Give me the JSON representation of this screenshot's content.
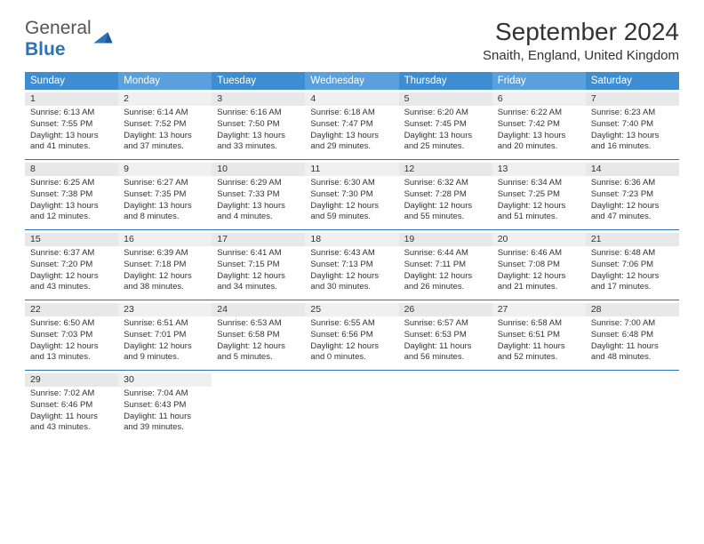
{
  "logo": {
    "text1": "General",
    "text2": "Blue"
  },
  "title": "September 2024",
  "location": "Snaith, England, United Kingdom",
  "colors": {
    "header_blue": "#3f8dd1",
    "header_blue_light": "#5aa0dc",
    "divider": "#2a74b8",
    "daynum_bg": "#e8e8e8",
    "daynum_bg2": "#f0f0f0"
  },
  "dayHeaders": [
    "Sunday",
    "Monday",
    "Tuesday",
    "Wednesday",
    "Thursday",
    "Friday",
    "Saturday"
  ],
  "weeks": [
    [
      {
        "n": "1",
        "sr": "6:13 AM",
        "ss": "7:55 PM",
        "dh": "13",
        "dm": "41"
      },
      {
        "n": "2",
        "sr": "6:14 AM",
        "ss": "7:52 PM",
        "dh": "13",
        "dm": "37"
      },
      {
        "n": "3",
        "sr": "6:16 AM",
        "ss": "7:50 PM",
        "dh": "13",
        "dm": "33"
      },
      {
        "n": "4",
        "sr": "6:18 AM",
        "ss": "7:47 PM",
        "dh": "13",
        "dm": "29"
      },
      {
        "n": "5",
        "sr": "6:20 AM",
        "ss": "7:45 PM",
        "dh": "13",
        "dm": "25"
      },
      {
        "n": "6",
        "sr": "6:22 AM",
        "ss": "7:42 PM",
        "dh": "13",
        "dm": "20"
      },
      {
        "n": "7",
        "sr": "6:23 AM",
        "ss": "7:40 PM",
        "dh": "13",
        "dm": "16"
      }
    ],
    [
      {
        "n": "8",
        "sr": "6:25 AM",
        "ss": "7:38 PM",
        "dh": "13",
        "dm": "12"
      },
      {
        "n": "9",
        "sr": "6:27 AM",
        "ss": "7:35 PM",
        "dh": "13",
        "dm": "8"
      },
      {
        "n": "10",
        "sr": "6:29 AM",
        "ss": "7:33 PM",
        "dh": "13",
        "dm": "4"
      },
      {
        "n": "11",
        "sr": "6:30 AM",
        "ss": "7:30 PM",
        "dh": "12",
        "dm": "59"
      },
      {
        "n": "12",
        "sr": "6:32 AM",
        "ss": "7:28 PM",
        "dh": "12",
        "dm": "55"
      },
      {
        "n": "13",
        "sr": "6:34 AM",
        "ss": "7:25 PM",
        "dh": "12",
        "dm": "51"
      },
      {
        "n": "14",
        "sr": "6:36 AM",
        "ss": "7:23 PM",
        "dh": "12",
        "dm": "47"
      }
    ],
    [
      {
        "n": "15",
        "sr": "6:37 AM",
        "ss": "7:20 PM",
        "dh": "12",
        "dm": "43"
      },
      {
        "n": "16",
        "sr": "6:39 AM",
        "ss": "7:18 PM",
        "dh": "12",
        "dm": "38"
      },
      {
        "n": "17",
        "sr": "6:41 AM",
        "ss": "7:15 PM",
        "dh": "12",
        "dm": "34"
      },
      {
        "n": "18",
        "sr": "6:43 AM",
        "ss": "7:13 PM",
        "dh": "12",
        "dm": "30"
      },
      {
        "n": "19",
        "sr": "6:44 AM",
        "ss": "7:11 PM",
        "dh": "12",
        "dm": "26"
      },
      {
        "n": "20",
        "sr": "6:46 AM",
        "ss": "7:08 PM",
        "dh": "12",
        "dm": "21"
      },
      {
        "n": "21",
        "sr": "6:48 AM",
        "ss": "7:06 PM",
        "dh": "12",
        "dm": "17"
      }
    ],
    [
      {
        "n": "22",
        "sr": "6:50 AM",
        "ss": "7:03 PM",
        "dh": "12",
        "dm": "13"
      },
      {
        "n": "23",
        "sr": "6:51 AM",
        "ss": "7:01 PM",
        "dh": "12",
        "dm": "9"
      },
      {
        "n": "24",
        "sr": "6:53 AM",
        "ss": "6:58 PM",
        "dh": "12",
        "dm": "5"
      },
      {
        "n": "25",
        "sr": "6:55 AM",
        "ss": "6:56 PM",
        "dh": "12",
        "dm": "0"
      },
      {
        "n": "26",
        "sr": "6:57 AM",
        "ss": "6:53 PM",
        "dh": "11",
        "dm": "56"
      },
      {
        "n": "27",
        "sr": "6:58 AM",
        "ss": "6:51 PM",
        "dh": "11",
        "dm": "52"
      },
      {
        "n": "28",
        "sr": "7:00 AM",
        "ss": "6:48 PM",
        "dh": "11",
        "dm": "48"
      }
    ],
    [
      {
        "n": "29",
        "sr": "7:02 AM",
        "ss": "6:46 PM",
        "dh": "11",
        "dm": "43"
      },
      {
        "n": "30",
        "sr": "7:04 AM",
        "ss": "6:43 PM",
        "dh": "11",
        "dm": "39"
      },
      null,
      null,
      null,
      null,
      null
    ]
  ]
}
